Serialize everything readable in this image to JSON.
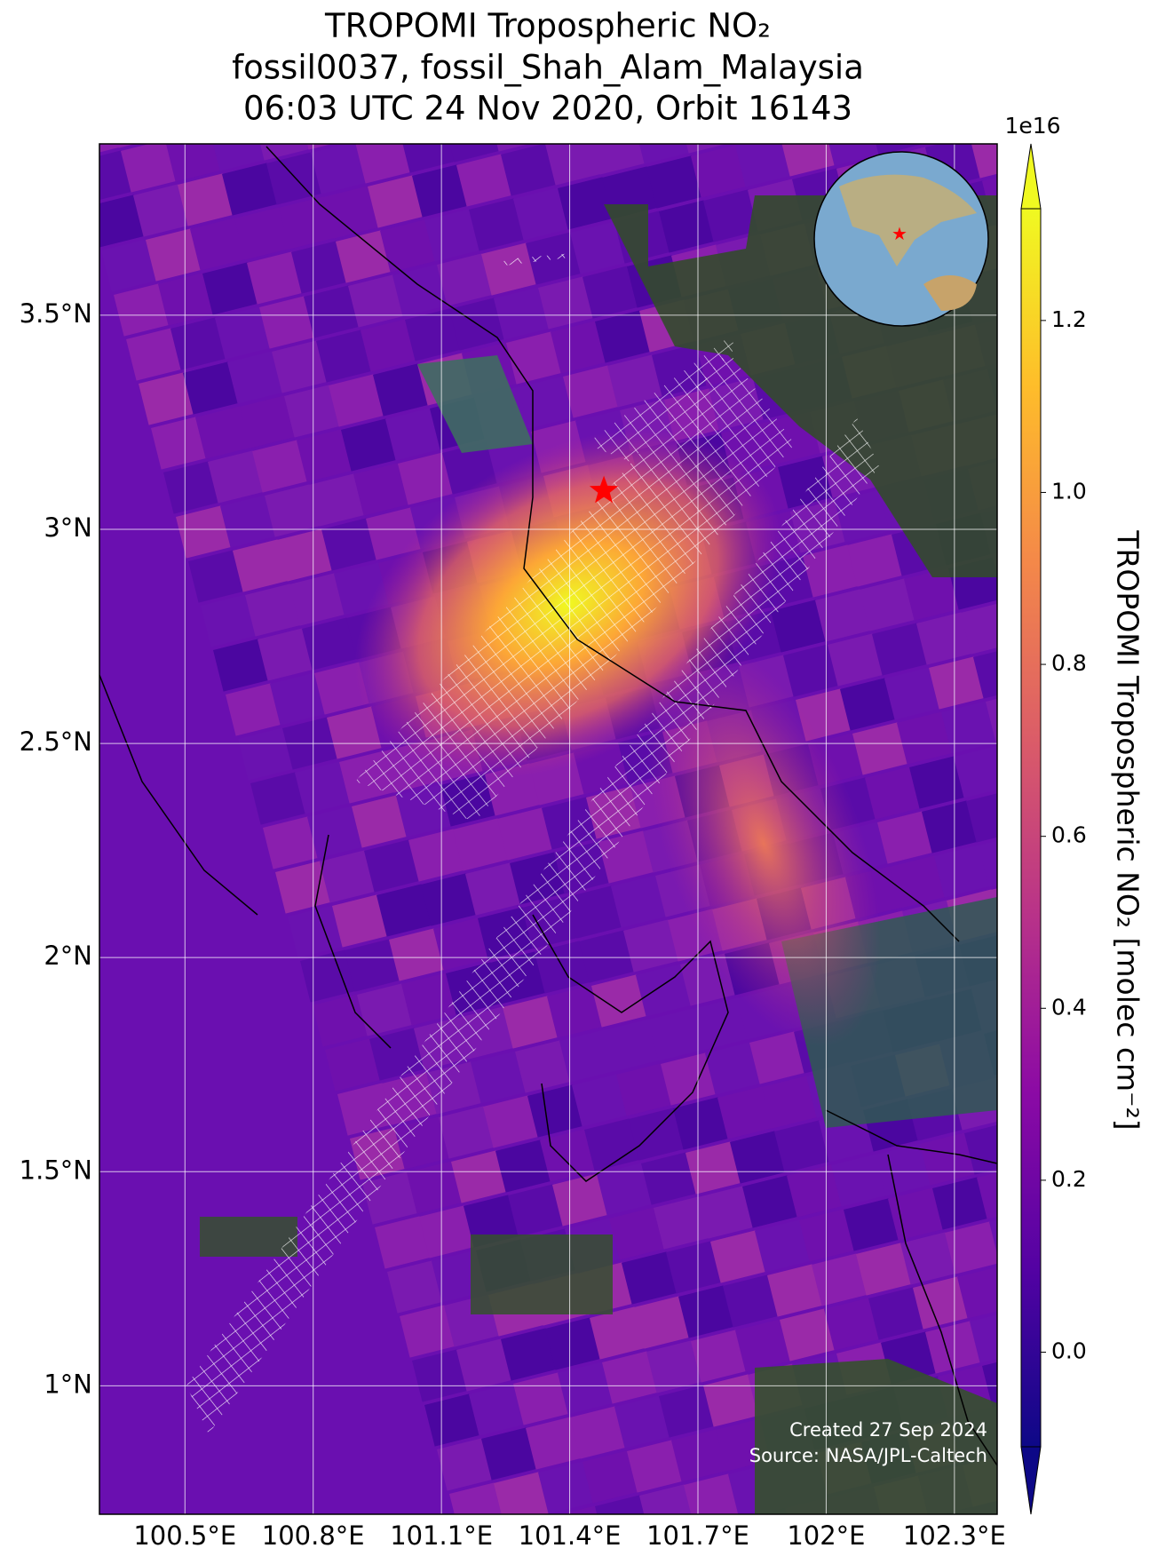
{
  "chart_data": {
    "type": "map",
    "title": [
      "TROPOMI Tropospheric NO₂",
      "fossil0037, fossil_Shah_Alam_Malaysia",
      "06:03 UTC 24 Nov 2020, Orbit 16143"
    ],
    "xlim": [
      100.3,
      102.4
    ],
    "ylim": [
      0.7,
      3.9
    ],
    "xticks": [
      {
        "value": 100.5,
        "label": "100.5°E"
      },
      {
        "value": 100.8,
        "label": "100.8°E"
      },
      {
        "value": 101.1,
        "label": "101.1°E"
      },
      {
        "value": 101.4,
        "label": "101.4°E"
      },
      {
        "value": 101.7,
        "label": "101.7°E"
      },
      {
        "value": 102.0,
        "label": "102°E"
      },
      {
        "value": 102.3,
        "label": "102.3°E"
      }
    ],
    "yticks": [
      {
        "value": 1.0,
        "label": "1°N"
      },
      {
        "value": 1.5,
        "label": "1.5°N"
      },
      {
        "value": 2.0,
        "label": "2°N"
      },
      {
        "value": 2.5,
        "label": "2.5°N"
      },
      {
        "value": 3.0,
        "label": "3°N"
      },
      {
        "value": 3.5,
        "label": "3.5°N"
      }
    ],
    "grid": true,
    "site": {
      "lon": 101.48,
      "lat": 3.09,
      "color": "#ff0000"
    },
    "colorbar": {
      "label": "TROPOMI Tropospheric NO₂ [molec cm⁻²]",
      "offset_label": "1e16",
      "lim": [
        -0.11,
        1.33
      ],
      "ticks": [
        {
          "value": 0,
          "label": "0.0"
        },
        0.2,
        0.4,
        0.6,
        0.8,
        {
          "value": 1.0,
          "label": "1.0"
        },
        1.2
      ],
      "colors": [
        "#0d0887",
        "#5302a3",
        "#8b0aa5",
        "#b83289",
        "#db5c68",
        "#f48849",
        "#febd2a",
        "#f0f921"
      ]
    },
    "annotations": [
      "Created 27 Sep 2024",
      "Source: NASA/JPL-Caltech"
    ]
  }
}
